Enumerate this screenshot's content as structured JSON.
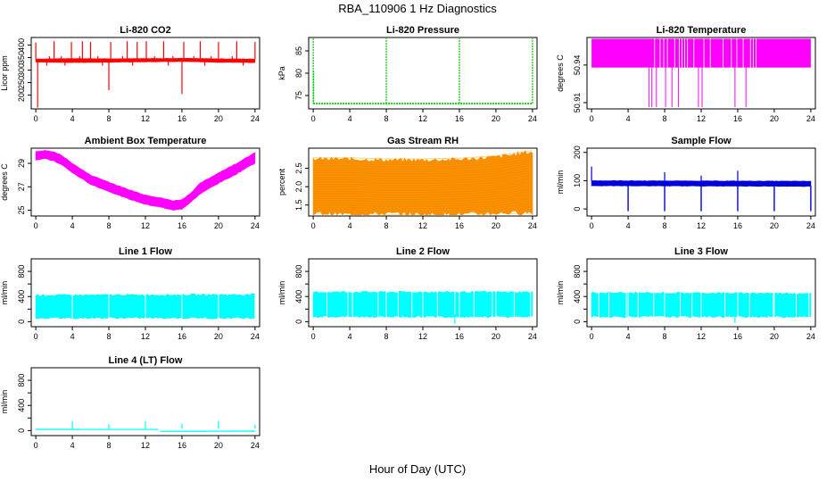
{
  "figure": {
    "title": "RBA_110906  1 Hz Diagnostics",
    "xlabel": "Hour of Day (UTC)"
  },
  "chart_data": [
    {
      "id": "co2",
      "type": "line",
      "title": "Li-820 CO2",
      "ylabel": "Licor ppm",
      "color": "#ff0000",
      "xticks": [
        0,
        4,
        8,
        12,
        16,
        20,
        24
      ],
      "yticks": [
        200,
        250,
        300,
        350,
        400
      ],
      "ytick_labels": [
        "200",
        "250",
        "300",
        "350",
        "400"
      ],
      "xlim": [
        -0.5,
        24.5
      ],
      "ylim": [
        145,
        430
      ],
      "band": [
        [
          0,
          332,
          344
        ],
        [
          4,
          330,
          346
        ],
        [
          8,
          331,
          345
        ],
        [
          12,
          333,
          346
        ],
        [
          16,
          334,
          347
        ],
        [
          20,
          331,
          345
        ],
        [
          24,
          330,
          344
        ]
      ],
      "spikes": [
        [
          0,
          410
        ],
        [
          0.2,
          150
        ],
        [
          2,
          415
        ],
        [
          3.9,
          412
        ],
        [
          5.1,
          415
        ],
        [
          6,
          412
        ],
        [
          8,
          220
        ],
        [
          8.2,
          412
        ],
        [
          10,
          415
        ],
        [
          11.1,
          412
        ],
        [
          12.1,
          415
        ],
        [
          14,
          415
        ],
        [
          16,
          205
        ],
        [
          16.2,
          412
        ],
        [
          18,
          415
        ],
        [
          20,
          412
        ],
        [
          22,
          415
        ],
        [
          24,
          412
        ],
        [
          1.5,
          355
        ],
        [
          2.8,
          355
        ],
        [
          4.8,
          355
        ],
        [
          6.8,
          355
        ],
        [
          9.5,
          355
        ],
        [
          13,
          355
        ],
        [
          15,
          355
        ],
        [
          17.3,
          355
        ],
        [
          19.2,
          355
        ],
        [
          21.5,
          355
        ],
        [
          1.2,
          318
        ],
        [
          3.2,
          318
        ],
        [
          7.3,
          318
        ],
        [
          10.6,
          318
        ],
        [
          14.5,
          318
        ],
        [
          18.5,
          318
        ],
        [
          22.7,
          318
        ]
      ]
    },
    {
      "id": "pressure",
      "type": "line",
      "title": "Li-820 Pressure",
      "ylabel": "kPa",
      "color": "#00cc00",
      "xticks": [
        0,
        4,
        8,
        12,
        16,
        20,
        24
      ],
      "yticks": [
        75,
        80,
        85
      ],
      "ytick_labels": [
        "75",
        "80",
        "85"
      ],
      "xlim": [
        -0.5,
        24.5
      ],
      "ylim": [
        72,
        88
      ],
      "base": 73.2,
      "spikes": [
        [
          0,
          87.8
        ],
        [
          0.05,
          80.5
        ],
        [
          8,
          88
        ],
        [
          16,
          88
        ],
        [
          24,
          88
        ]
      ]
    },
    {
      "id": "licor-temp",
      "type": "band",
      "title": "Li-820 Temperature",
      "ylabel": "degrees C",
      "color": "#ff00ff",
      "xticks": [
        0,
        4,
        8,
        12,
        16,
        20,
        24
      ],
      "yticks": [
        50.91,
        50.94
      ],
      "ytick_labels": [
        "50.91",
        "50.94"
      ],
      "xlim": [
        -0.5,
        24.5
      ],
      "ylim": [
        50.905,
        50.962
      ],
      "band": [
        50.938,
        50.961
      ],
      "drops": [
        6.3,
        6.6,
        7.1,
        8.1,
        8.8,
        9.5,
        11.7,
        12.1,
        15.7,
        16.9
      ],
      "mids": [
        6.9,
        7.5,
        7.9,
        8.3,
        9.1,
        9.6,
        9.9,
        10.2,
        10.5,
        11.2,
        12.3,
        13.0,
        14.4,
        15.3,
        15.9,
        16.6,
        17.4,
        17.7,
        18.0
      ]
    },
    {
      "id": "box-temp",
      "type": "line",
      "title": "Ambient Box Temperature",
      "ylabel": "degrees C",
      "color": "#ff00ff",
      "xticks": [
        0,
        4,
        8,
        12,
        16,
        20,
        24
      ],
      "yticks": [
        25,
        27,
        29
      ],
      "ytick_labels": [
        "25",
        "27",
        "29"
      ],
      "xlim": [
        -0.5,
        24.5
      ],
      "ylim": [
        24.5,
        30.3
      ],
      "band": [
        [
          0,
          29.3,
          30.0
        ],
        [
          1,
          29.4,
          30.1
        ],
        [
          2,
          29.2,
          30.0
        ],
        [
          3,
          28.8,
          29.6
        ],
        [
          4,
          28.2,
          29.0
        ],
        [
          5,
          27.7,
          28.5
        ],
        [
          6,
          27.2,
          28.0
        ],
        [
          8,
          26.6,
          27.4
        ],
        [
          10,
          26.0,
          26.8
        ],
        [
          12,
          25.5,
          26.3
        ],
        [
          14,
          25.2,
          26.0
        ],
        [
          15,
          25.0,
          25.8
        ],
        [
          16,
          25.1,
          25.9
        ],
        [
          17,
          25.7,
          26.5
        ],
        [
          18,
          26.4,
          27.3
        ],
        [
          20,
          27.3,
          28.2
        ],
        [
          22,
          28.1,
          29.0
        ],
        [
          23,
          28.6,
          29.5
        ],
        [
          24,
          29.0,
          29.9
        ]
      ]
    },
    {
      "id": "rh",
      "type": "line",
      "title": "Gas Stream RH",
      "ylabel": "percent",
      "color": "#ff8800",
      "accent": "#e0b000",
      "xticks": [
        0,
        4,
        8,
        12,
        16,
        20,
        24
      ],
      "yticks": [
        1.5,
        2.0,
        2.5
      ],
      "ytick_labels": [
        "1.5",
        "2.0",
        "2.5"
      ],
      "xlim": [
        -0.5,
        24.5
      ],
      "ylim": [
        1.2,
        3.05
      ],
      "band": [
        [
          0,
          1.28,
          2.75
        ],
        [
          4,
          1.25,
          2.75
        ],
        [
          8,
          1.27,
          2.72
        ],
        [
          12,
          1.25,
          2.72
        ],
        [
          16,
          1.25,
          2.74
        ],
        [
          20,
          1.28,
          2.8
        ],
        [
          24,
          1.3,
          2.95
        ]
      ]
    },
    {
      "id": "sample-flow",
      "type": "line",
      "title": "Sample Flow",
      "ylabel": "ml/min",
      "color": "#0000dd",
      "xticks": [
        0,
        4,
        8,
        12,
        16,
        20,
        24
      ],
      "yticks": [
        0,
        100,
        200
      ],
      "ytick_labels": [
        "0",
        "100",
        "200"
      ],
      "xlim": [
        -0.5,
        24.5
      ],
      "ylim": [
        -25,
        215
      ],
      "band": [
        [
          0,
          82,
          100
        ],
        [
          24,
          80,
          98
        ]
      ],
      "drops": [
        4,
        8,
        12,
        16,
        20,
        24
      ],
      "peaks": [
        [
          0,
          150
        ],
        [
          8,
          130
        ],
        [
          16,
          135
        ],
        [
          12,
          118
        ]
      ]
    },
    {
      "id": "line1",
      "type": "line",
      "title": "Line 1 Flow",
      "ylabel": "ml/min",
      "color": "#00ffff",
      "xticks": [
        0,
        4,
        8,
        12,
        16,
        20,
        24
      ],
      "yticks": [
        0,
        200,
        400,
        600,
        800
      ],
      "ytick_labels": [
        "0",
        "400",
        "800"
      ],
      "ytick_label_values": [
        0,
        400,
        800
      ],
      "xlim": [
        -0.5,
        24.5
      ],
      "ylim": [
        -80,
        1000
      ],
      "band": [
        [
          0,
          60,
          420
        ],
        [
          24,
          60,
          430
        ]
      ],
      "gaps": [
        4,
        8,
        12,
        16,
        20,
        24
      ]
    },
    {
      "id": "line2",
      "type": "line",
      "title": "Line 2 Flow",
      "ylabel": "ml/min",
      "color": "#00ffff",
      "xticks": [
        0,
        4,
        8,
        12,
        16,
        20,
        24
      ],
      "yticks": [
        0,
        200,
        400,
        600,
        800
      ],
      "ytick_labels": [
        "0",
        "400",
        "800"
      ],
      "ytick_label_values": [
        0,
        400,
        800
      ],
      "xlim": [
        -0.5,
        24.5
      ],
      "ylim": [
        -80,
        1000
      ],
      "band": [
        [
          0,
          80,
          470
        ],
        [
          24,
          80,
          470
        ]
      ],
      "gaps": [
        1.5,
        3.8,
        4.3,
        7.1,
        8.0,
        9.3,
        10.8,
        12,
        13.6,
        15.5,
        16,
        17.6,
        19.6,
        20,
        22,
        23.8
      ],
      "dip": [
        15.5,
        -40
      ]
    },
    {
      "id": "line3",
      "type": "line",
      "title": "Line 3 Flow",
      "ylabel": "ml/min",
      "color": "#00ffff",
      "xticks": [
        0,
        4,
        8,
        12,
        16,
        20,
        24
      ],
      "yticks": [
        0,
        200,
        400,
        600,
        800
      ],
      "ytick_labels": [
        "0",
        "400",
        "800"
      ],
      "ytick_label_values": [
        0,
        400,
        800
      ],
      "xlim": [
        -0.5,
        24.5
      ],
      "ylim": [
        -80,
        1000
      ],
      "band": [
        [
          0,
          80,
          460
        ],
        [
          24,
          80,
          450
        ]
      ],
      "gaps": [
        0.8,
        1.9,
        3.8,
        4.0,
        5.1,
        6.8,
        8.0,
        9.7,
        11.0,
        12,
        14.6,
        16,
        17.3,
        19.9,
        20,
        22.4,
        23.8
      ],
      "dip": [
        15.7,
        -20
      ]
    },
    {
      "id": "line4",
      "type": "line",
      "title": "Line 4 (LT) Flow",
      "ylabel": "ml/min",
      "color": "#00ffff",
      "xticks": [
        0,
        4,
        8,
        12,
        16,
        20,
        24
      ],
      "yticks": [
        0,
        200,
        400,
        600,
        800
      ],
      "ytick_labels": [
        "0",
        "400",
        "800"
      ],
      "ytick_label_values": [
        0,
        400,
        800
      ],
      "xlim": [
        -0.5,
        24.5
      ],
      "ylim": [
        -80,
        1000
      ],
      "band": [
        [
          0,
          10,
          28
        ],
        [
          13.4,
          8,
          26
        ],
        [
          13.6,
          -22,
          -4
        ],
        [
          24,
          -20,
          0
        ]
      ],
      "peaks": [
        [
          4,
          150
        ],
        [
          8,
          100
        ],
        [
          12,
          150
        ],
        [
          16,
          110
        ],
        [
          20,
          150
        ],
        [
          24,
          90
        ]
      ]
    }
  ]
}
